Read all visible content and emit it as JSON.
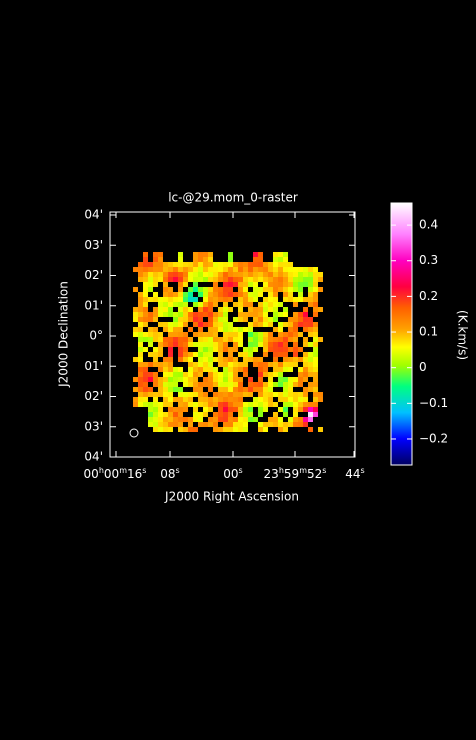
{
  "plot": {
    "title": "lc-@29.mom_0-raster",
    "x_axis_label": "J2000 Right Ascension",
    "y_axis_label": "J2000 Declination",
    "x_tick_labels": [
      [
        "00",
        "h",
        "00",
        "m",
        "16",
        "s"
      ],
      [
        "08",
        "s"
      ],
      [
        "00",
        "s"
      ],
      [
        "23",
        "h",
        "59",
        "m",
        "52",
        "s"
      ],
      [
        "44",
        "s"
      ]
    ],
    "y_tick_labels": [
      "04'",
      "03'",
      "02'",
      "01'",
      "0°",
      "01'",
      "02'",
      "03'",
      "04'"
    ]
  },
  "colorbar": {
    "label": "(K.km/s)",
    "range": [
      -0.273,
      0.462
    ],
    "ticks": [
      {
        "value": 0.4,
        "label": "0.4"
      },
      {
        "value": 0.3,
        "label": "0.3"
      },
      {
        "value": 0.2,
        "label": "0.2"
      },
      {
        "value": 0.1,
        "label": "0.1"
      },
      {
        "value": 0,
        "label": "0"
      },
      {
        "value": -0.1,
        "label": "−0.1"
      },
      {
        "value": -0.2,
        "label": "−0.2"
      }
    ]
  }
}
